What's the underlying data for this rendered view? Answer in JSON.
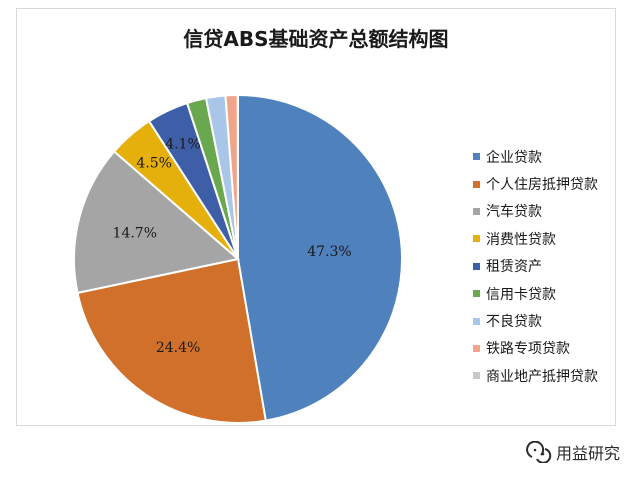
{
  "chart_data": {
    "type": "pie",
    "title": "信贷ABS基础资产总额结构图",
    "slices": [
      {
        "name": "企业贷款",
        "value": 47.3,
        "label": "47.3%",
        "color": "#4f81bd"
      },
      {
        "name": "个人住房抵押贷款",
        "value": 24.4,
        "label": "24.4%",
        "color": "#d0702a"
      },
      {
        "name": "汽车贷款",
        "value": 14.7,
        "label": "14.7%",
        "color": "#a5a5a5"
      },
      {
        "name": "消费性贷款",
        "value": 4.5,
        "label": "4.5%",
        "color": "#e6b00c"
      },
      {
        "name": "租赁资产",
        "value": 4.1,
        "label": "4.1%",
        "color": "#3e5fa8"
      },
      {
        "name": "信用卡贷款",
        "value": 1.9,
        "label": "",
        "color": "#6aa84f"
      },
      {
        "name": "不良贷款",
        "value": 1.9,
        "label": "",
        "color": "#a9c6e8"
      },
      {
        "name": "铁路专项贷款",
        "value": 1.2,
        "label": "",
        "color": "#f0a58a"
      },
      {
        "name": "商业地产抵押贷款",
        "value": 0.02,
        "label": "",
        "color": "#c9c9c9"
      }
    ],
    "legend_position": "right"
  },
  "watermark": {
    "text": "用益研究",
    "icon": "wechat-icon"
  }
}
